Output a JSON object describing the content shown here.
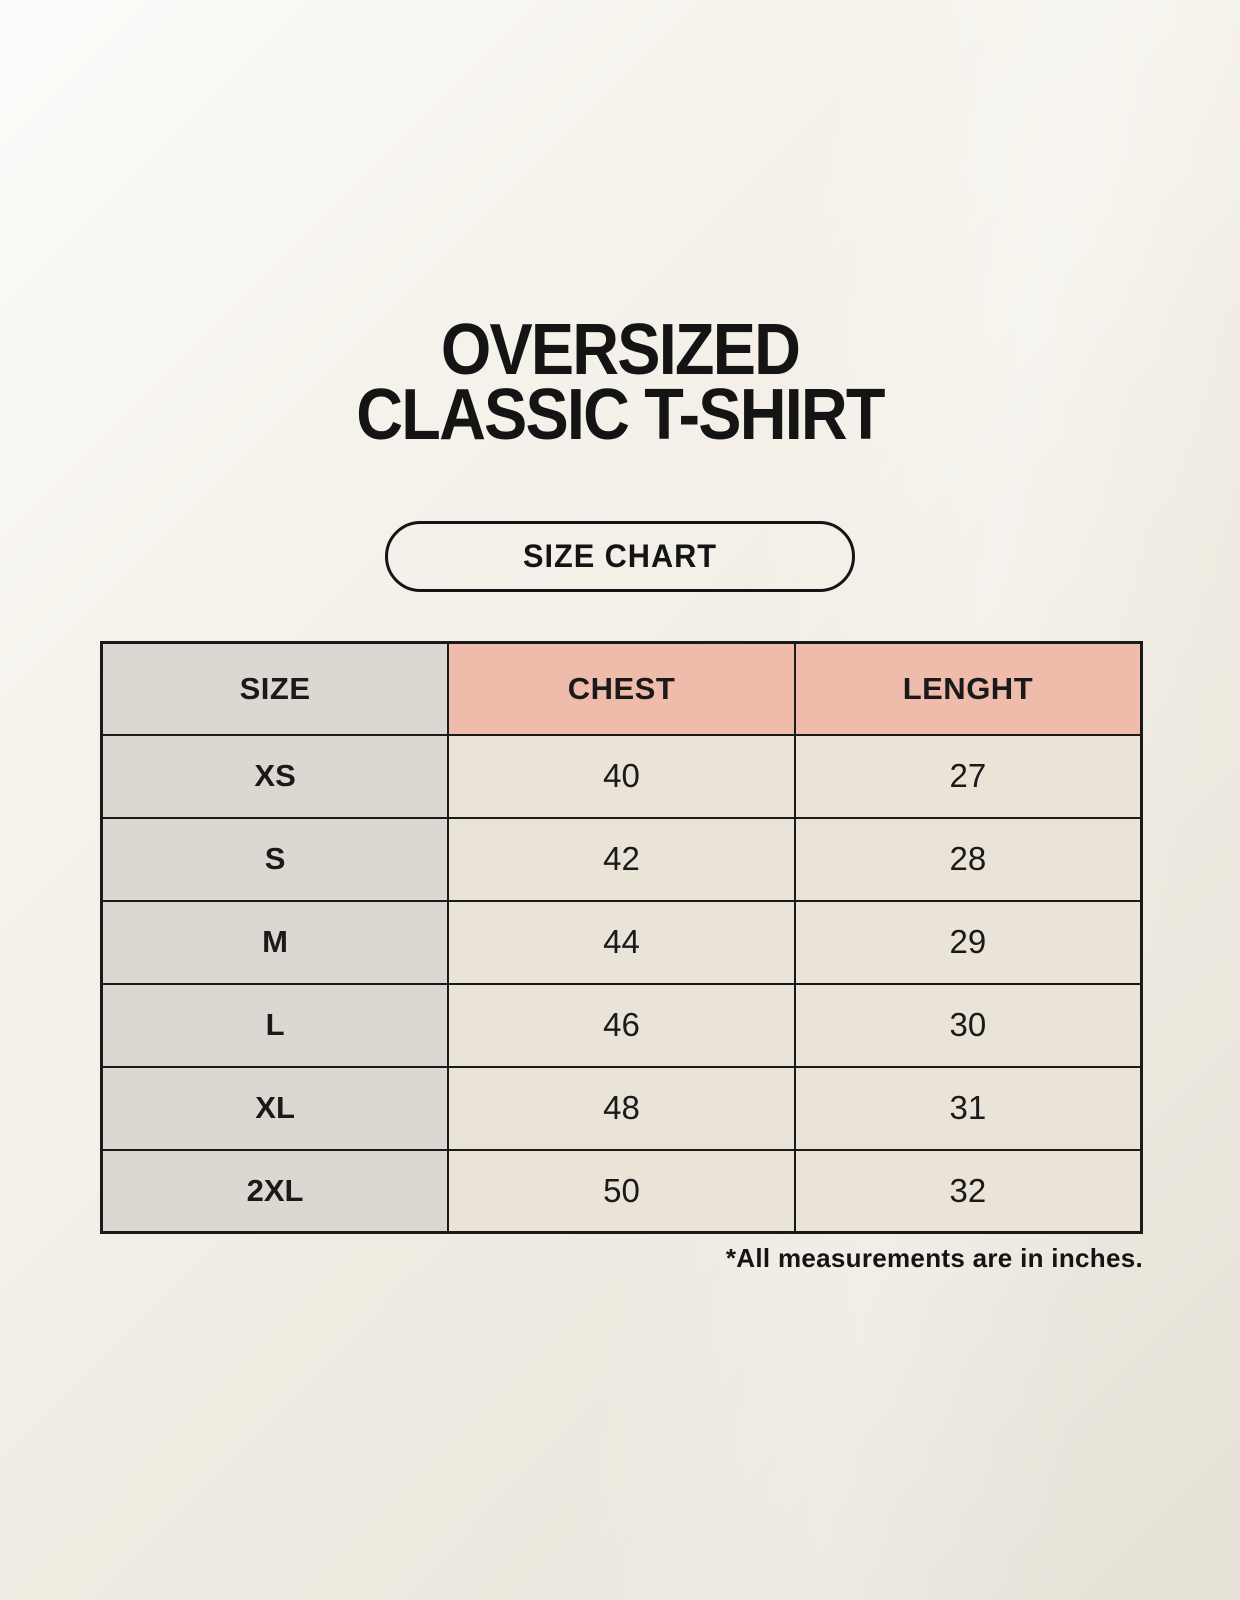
{
  "title": {
    "line1": "OVERSIZED",
    "line2": "CLASSIC T-SHIRT"
  },
  "size_chart_button": {
    "label": "SIZE CHART"
  },
  "size_table": {
    "columns": [
      "SIZE",
      "CHEST",
      "LENGHT"
    ],
    "rows": [
      {
        "size": "XS",
        "chest": "40",
        "lenght": "27"
      },
      {
        "size": "S",
        "chest": "42",
        "lenght": "28"
      },
      {
        "size": "M",
        "chest": "44",
        "lenght": "29"
      },
      {
        "size": "L",
        "chest": "46",
        "lenght": "30"
      },
      {
        "size": "XL",
        "chest": "48",
        "lenght": "31"
      },
      {
        "size": "2XL",
        "chest": "50",
        "lenght": "32"
      }
    ]
  },
  "footnote": "*All measurements are in inches.",
  "colors": {
    "background": "#F2EEE5",
    "label_column_bg": "#DDD7D1",
    "accent_header_bg": "#EFBCAB",
    "value_cell_bg": "#E9E3D8",
    "border": "#1A1A1A",
    "text": "#141414"
  },
  "chart_data": {
    "type": "table",
    "title": "OVERSIZED CLASSIC T-SHIRT — SIZE CHART",
    "columns": [
      "SIZE",
      "CHEST",
      "LENGHT"
    ],
    "rows": [
      [
        "XS",
        "40",
        "27"
      ],
      [
        "S",
        "42",
        "28"
      ],
      [
        "M",
        "44",
        "29"
      ],
      [
        "L",
        "46",
        "30"
      ],
      [
        "XL",
        "48",
        "31"
      ],
      [
        "2XL",
        "50",
        "32"
      ]
    ],
    "units_note": "*All measurements are in inches."
  }
}
